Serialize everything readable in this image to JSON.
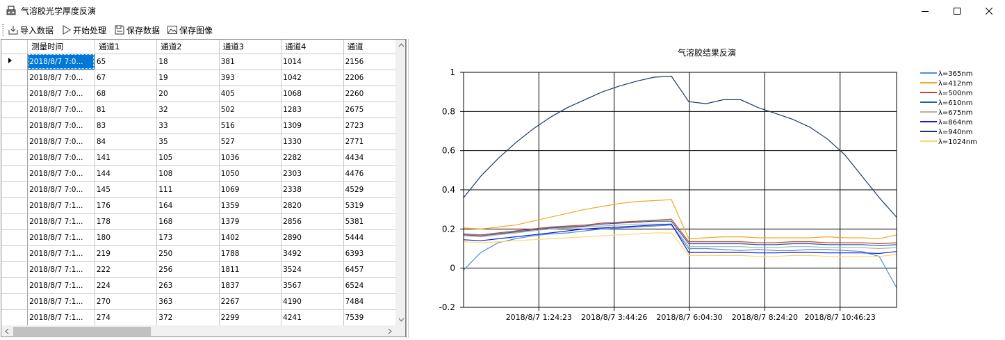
{
  "window": {
    "title": "气溶胶光学厚度反演",
    "minimize_icon": "minimize-icon",
    "maximize_icon": "maximize-icon",
    "close_icon": "close-icon"
  },
  "toolbar": {
    "import_label": "导入数据",
    "start_label": "开始处理",
    "save_data_label": "保存数据",
    "save_image_label": "保存图像"
  },
  "table": {
    "columns": [
      "测量时间",
      "通道1",
      "通道2",
      "通道3",
      "通道4",
      "通道"
    ],
    "rows": [
      [
        "2018/8/7 7:0...",
        "65",
        "18",
        "381",
        "1014",
        "2156"
      ],
      [
        "2018/8/7 7:0...",
        "67",
        "19",
        "393",
        "1042",
        "2206"
      ],
      [
        "2018/8/7 7:0...",
        "68",
        "20",
        "405",
        "1068",
        "2260"
      ],
      [
        "2018/8/7 7:0...",
        "81",
        "32",
        "502",
        "1283",
        "2675"
      ],
      [
        "2018/8/7 7:0...",
        "83",
        "33",
        "516",
        "1309",
        "2723"
      ],
      [
        "2018/8/7 7:0...",
        "84",
        "35",
        "527",
        "1330",
        "2771"
      ],
      [
        "2018/8/7 7:0...",
        "141",
        "105",
        "1036",
        "2282",
        "4434"
      ],
      [
        "2018/8/7 7:0...",
        "144",
        "108",
        "1050",
        "2303",
        "4476"
      ],
      [
        "2018/8/7 7:0...",
        "145",
        "111",
        "1069",
        "2338",
        "4529"
      ],
      [
        "2018/8/7 7:1...",
        "176",
        "164",
        "1359",
        "2820",
        "5319"
      ],
      [
        "2018/8/7 7:1...",
        "178",
        "168",
        "1379",
        "2856",
        "5381"
      ],
      [
        "2018/8/7 7:1...",
        "180",
        "173",
        "1402",
        "2890",
        "5444"
      ],
      [
        "2018/8/7 7:1...",
        "219",
        "250",
        "1788",
        "3492",
        "6393"
      ],
      [
        "2018/8/7 7:1...",
        "222",
        "256",
        "1811",
        "3524",
        "6457"
      ],
      [
        "2018/8/7 7:1...",
        "224",
        "263",
        "1837",
        "3567",
        "6524"
      ],
      [
        "2018/8/7 7:1...",
        "270",
        "363",
        "2267",
        "4190",
        "7484"
      ],
      [
        "2018/8/7 7:1...",
        "274",
        "372",
        "2299",
        "4241",
        "7539"
      ]
    ]
  },
  "chart_data": {
    "type": "line",
    "title": "气溶胶结果反演",
    "ylim": [
      -0.2,
      1
    ],
    "yticks": [
      "1",
      "0.8",
      "0.6",
      "0.4",
      "0.2",
      "0",
      "-0.2"
    ],
    "xticks": [
      "2018/8/7 1:24:23",
      "2018/8/7 3:44:26",
      "2018/8/7 6:04:30",
      "2018/8/7 8:24:20",
      "2018/8/7 10:46:23"
    ],
    "grid": true,
    "legend_position": "right",
    "series": [
      {
        "name": "λ=365nm",
        "color": "#4a90d9",
        "values": [
          -0.01,
          0.08,
          0.13,
          0.15,
          0.165,
          0.175,
          0.18,
          0.19,
          0.2,
          0.205,
          0.21,
          0.215,
          0.22,
          0.1,
          0.1,
          0.095,
          0.09,
          0.095,
          0.09,
          0.09,
          0.095,
          0.095,
          0.09,
          0.085,
          0.06,
          -0.1
        ]
      },
      {
        "name": "λ=412nm",
        "color": "#f5a623",
        "values": [
          0.205,
          0.2,
          0.21,
          0.22,
          0.24,
          0.26,
          0.28,
          0.3,
          0.315,
          0.33,
          0.34,
          0.345,
          0.35,
          0.15,
          0.155,
          0.16,
          0.16,
          0.155,
          0.155,
          0.155,
          0.155,
          0.16,
          0.155,
          0.155,
          0.15,
          0.17
        ]
      },
      {
        "name": "λ=500nm",
        "color": "#d0402a",
        "values": [
          0.175,
          0.17,
          0.18,
          0.19,
          0.2,
          0.21,
          0.215,
          0.22,
          0.23,
          0.235,
          0.24,
          0.245,
          0.25,
          0.135,
          0.135,
          0.135,
          0.135,
          0.13,
          0.13,
          0.135,
          0.135,
          0.13,
          0.13,
          0.13,
          0.125,
          0.13
        ]
      },
      {
        "name": "λ=610nm",
        "color": "#1f5fa0",
        "values": [
          0.17,
          0.165,
          0.175,
          0.185,
          0.195,
          0.205,
          0.21,
          0.215,
          0.225,
          0.23,
          0.235,
          0.24,
          0.24,
          0.125,
          0.125,
          0.125,
          0.125,
          0.12,
          0.12,
          0.125,
          0.125,
          0.12,
          0.12,
          0.12,
          0.115,
          0.12
        ]
      },
      {
        "name": "λ=675nm",
        "color": "#b0b0b0",
        "values": [
          0.165,
          0.16,
          0.17,
          0.18,
          0.19,
          0.2,
          0.205,
          0.21,
          0.215,
          0.22,
          0.225,
          0.225,
          0.225,
          0.11,
          0.11,
          0.11,
          0.11,
          0.105,
          0.105,
          0.11,
          0.11,
          0.105,
          0.105,
          0.105,
          0.1,
          0.105
        ]
      },
      {
        "name": "λ=864nm",
        "color": "#1020d0",
        "values": [
          0.145,
          0.14,
          0.15,
          0.16,
          0.17,
          0.18,
          0.19,
          0.2,
          0.205,
          0.21,
          0.215,
          0.22,
          0.225,
          0.08,
          0.08,
          0.08,
          0.08,
          0.078,
          0.078,
          0.08,
          0.08,
          0.078,
          0.078,
          0.078,
          0.075,
          0.085
        ]
      },
      {
        "name": "λ=940nm",
        "color": "#1c3764",
        "values": [
          0.36,
          0.47,
          0.56,
          0.64,
          0.71,
          0.77,
          0.82,
          0.86,
          0.9,
          0.93,
          0.955,
          0.975,
          0.98,
          0.85,
          0.84,
          0.86,
          0.86,
          0.82,
          0.79,
          0.76,
          0.72,
          0.66,
          0.58,
          0.47,
          0.36,
          0.26
        ]
      },
      {
        "name": "λ=1024nm",
        "color": "#ffd86b",
        "values": [
          0.135,
          0.13,
          0.135,
          0.14,
          0.145,
          0.15,
          0.155,
          0.16,
          0.165,
          0.17,
          0.175,
          0.18,
          0.18,
          0.065,
          0.065,
          0.065,
          0.065,
          0.06,
          0.06,
          0.065,
          0.065,
          0.06,
          0.06,
          0.06,
          0.06,
          0.07
        ]
      }
    ]
  }
}
